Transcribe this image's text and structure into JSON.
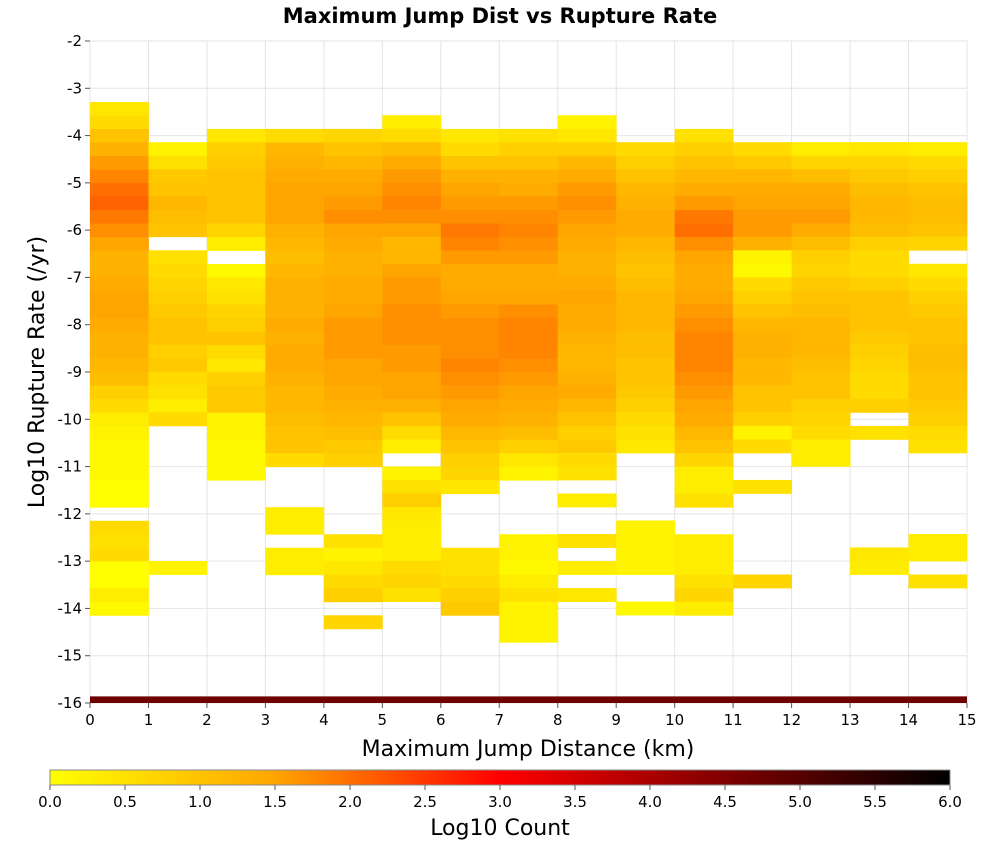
{
  "chart_data": {
    "type": "heatmap",
    "title": "Maximum Jump Dist vs Rupture Rate",
    "xlabel": "Maximum Jump Distance (km)",
    "ylabel": "Log10 Rupture Rate (/yr)",
    "xlim": [
      0,
      15
    ],
    "ylim": [
      -16,
      -2
    ],
    "x_ticks": [
      "0",
      "1",
      "2",
      "3",
      "4",
      "5",
      "6",
      "7",
      "8",
      "9",
      "10",
      "11",
      "12",
      "13",
      "14",
      "15"
    ],
    "y_ticks": [
      "-2",
      "-3",
      "-4",
      "-5",
      "-6",
      "-7",
      "-8",
      "-9",
      "-10",
      "-11",
      "-12",
      "-13",
      "-14",
      "-15",
      "-16"
    ],
    "grid": true,
    "x_bin_width": 1,
    "y_bin_height": 0.2857,
    "colorbar": {
      "label": "Log10 Count",
      "range": [
        0,
        6
      ],
      "ticks": [
        "0.0",
        "0.5",
        "1.0",
        "1.5",
        "2.0",
        "2.5",
        "3.0",
        "3.5",
        "4.0",
        "4.5",
        "5.0",
        "5.5",
        "6.0"
      ],
      "colors": [
        "#ffff00",
        "#ffa500",
        "#ff0000",
        "#000000"
      ]
    },
    "bottom_band": {
      "y_range": [
        -16,
        -15.86
      ],
      "value": 4.7
    },
    "columns": [
      {
        "x": 0.5,
        "y_top": -3.29,
        "values": [
          0.4,
          0.6,
          1.0,
          1.3,
          1.6,
          1.8,
          2.0,
          2.1,
          1.9,
          1.7,
          1.5,
          1.3,
          1.3,
          1.4,
          1.5,
          1.5,
          1.4,
          1.3,
          1.3,
          1.2,
          1.1,
          0.8,
          0.6,
          0.3,
          0.2,
          0.1,
          0.1,
          0.1,
          0,
          0,
          null,
          0.6,
          0.5,
          0.6,
          0,
          0,
          0.3,
          0.1
        ]
      },
      {
        "x": 1.5,
        "y_top": -4.14,
        "values": [
          0.2,
          0.5,
          0.9,
          1.0,
          1.2,
          1.1,
          1.0,
          null,
          0.5,
          0.6,
          0.7,
          0.8,
          0.9,
          1.0,
          1.0,
          0.8,
          0.9,
          0.6,
          0.5,
          0.3,
          0.6,
          null,
          null,
          null,
          null,
          null,
          null,
          null,
          null,
          null,
          null,
          0.2
        ]
      },
      {
        "x": 2.5,
        "y_top": -3.86,
        "values": [
          0.4,
          0.8,
          0.9,
          1.0,
          1.0,
          1.0,
          1.0,
          0.7,
          0.3,
          null,
          0.1,
          0.4,
          0.5,
          0.7,
          0.8,
          1.0,
          0.6,
          0.4,
          0.8,
          0.9,
          0.9,
          0.2,
          0.2,
          0.1,
          0.1,
          0.1
        ]
      },
      {
        "x": 3.5,
        "y_top": -3.86,
        "values": [
          0.6,
          1.2,
          1.3,
          1.4,
          1.5,
          1.5,
          1.5,
          1.3,
          1.2,
          1.1,
          1.2,
          1.3,
          1.3,
          1.3,
          1.4,
          1.3,
          1.4,
          1.4,
          1.3,
          1.2,
          1.2,
          1.1,
          1.0,
          1.0,
          0.6,
          null,
          null,
          null,
          0.3,
          0.3,
          null,
          0.3,
          0.3
        ]
      },
      {
        "x": 4.5,
        "y_top": -3.86,
        "values": [
          0.7,
          1.0,
          1.2,
          1.4,
          1.5,
          1.6,
          1.7,
          1.5,
          1.4,
          1.3,
          1.3,
          1.4,
          1.4,
          1.5,
          1.6,
          1.6,
          1.6,
          1.5,
          1.5,
          1.4,
          1.3,
          1.2,
          1.1,
          0.9,
          0.8,
          null,
          null,
          null,
          null,
          null,
          0.5,
          0.2,
          0.4,
          0.6,
          0.8,
          null,
          0.7
        ]
      },
      {
        "x": 5.5,
        "y_top": -3.57,
        "values": [
          0.3,
          0.6,
          1.1,
          1.4,
          1.6,
          1.7,
          1.8,
          1.7,
          1.5,
          1.2,
          1.2,
          1.5,
          1.6,
          1.6,
          1.7,
          1.7,
          1.7,
          1.6,
          1.6,
          1.5,
          1.5,
          1.3,
          1.0,
          0.6,
          0.3,
          null,
          0.2,
          0.5,
          0.8,
          0.4,
          0.3,
          0.3,
          0.3,
          0.6,
          0.7,
          0.5
        ]
      },
      {
        "x": 6.5,
        "y_top": -3.86,
        "values": [
          0.4,
          0.6,
          1.0,
          1.3,
          1.5,
          1.6,
          1.7,
          1.9,
          1.8,
          1.6,
          1.4,
          1.4,
          1.5,
          1.6,
          1.7,
          1.7,
          1.7,
          1.8,
          1.7,
          1.6,
          1.5,
          1.4,
          1.2,
          1.0,
          0.8,
          0.7,
          0.4,
          null,
          null,
          null,
          null,
          0.5,
          0.5,
          0.6,
          0.8,
          0.9
        ]
      },
      {
        "x": 7.5,
        "y_top": -3.86,
        "values": [
          0.5,
          0.8,
          1.0,
          1.3,
          1.4,
          1.6,
          1.7,
          1.8,
          1.7,
          1.6,
          1.4,
          1.4,
          1.5,
          1.7,
          1.8,
          1.8,
          1.8,
          1.7,
          1.6,
          1.5,
          1.4,
          1.3,
          1.1,
          0.8,
          0.4,
          0.2,
          null,
          null,
          null,
          null,
          0.2,
          0.2,
          0.1,
          0.3,
          0.5,
          0.2,
          0.2,
          0.2
        ]
      },
      {
        "x": 8.5,
        "y_top": -3.57,
        "values": [
          0.2,
          0.4,
          0.8,
          1.2,
          1.4,
          1.6,
          1.7,
          1.6,
          1.5,
          1.4,
          1.3,
          1.3,
          1.4,
          1.5,
          1.4,
          1.4,
          1.3,
          1.2,
          1.2,
          1.3,
          1.4,
          1.2,
          1.0,
          0.8,
          0.9,
          0.6,
          0.5,
          null,
          0.3,
          null,
          null,
          0.5,
          null,
          0.3,
          null,
          0.4
        ]
      },
      {
        "x": 9.5,
        "y_top": -4.14,
        "values": [
          0.6,
          0.8,
          1.0,
          1.2,
          1.3,
          1.4,
          1.4,
          1.2,
          1.1,
          1.0,
          1.1,
          1.2,
          1.2,
          1.2,
          1.1,
          1.1,
          1.0,
          1.0,
          0.9,
          0.8,
          0.6,
          0.5,
          0.4,
          null,
          null,
          null,
          null,
          null,
          0.2,
          0.2,
          0.2,
          0.2,
          null,
          null,
          0.1
        ]
      },
      {
        "x": 10.5,
        "y_top": -3.86,
        "values": [
          0.5,
          0.8,
          1.0,
          1.2,
          1.4,
          1.6,
          1.9,
          2.0,
          1.7,
          1.5,
          1.4,
          1.4,
          1.5,
          1.6,
          1.7,
          1.8,
          1.8,
          1.8,
          1.7,
          1.6,
          1.5,
          1.4,
          1.2,
          1.0,
          0.7,
          0.3,
          0.3,
          0.5,
          null,
          null,
          0.3,
          0.3,
          0.3,
          0.5,
          0.7,
          0.3
        ]
      },
      {
        "x": 11.5,
        "y_top": -4.14,
        "values": [
          0.6,
          0.9,
          1.2,
          1.4,
          1.5,
          1.6,
          1.6,
          1.3,
          0.2,
          0.1,
          0.6,
          0.8,
          1.0,
          1.2,
          1.3,
          1.3,
          1.2,
          1.2,
          1.0,
          1.0,
          0.8,
          0.2,
          0.6,
          null,
          null,
          0.5,
          null,
          null,
          null,
          null,
          null,
          null,
          0.7
        ]
      },
      {
        "x": 12.5,
        "y_top": -4.14,
        "values": [
          0.3,
          0.7,
          1.1,
          1.4,
          1.5,
          1.6,
          1.4,
          1.1,
          0.8,
          0.7,
          0.9,
          1.0,
          1.1,
          1.2,
          1.2,
          1.2,
          1.1,
          1.0,
          1.0,
          0.8,
          0.7,
          0.6,
          0.3,
          0.3
        ]
      },
      {
        "x": 13.5,
        "y_top": -4.14,
        "values": [
          0.4,
          0.7,
          0.9,
          1.1,
          1.2,
          1.2,
          1.1,
          0.8,
          0.6,
          0.6,
          0.8,
          1.0,
          1.0,
          1.0,
          0.9,
          0.8,
          0.7,
          0.6,
          0.6,
          0.8,
          null,
          0.5,
          null,
          null,
          null,
          null,
          null,
          null,
          null,
          null,
          0.4,
          0.3
        ]
      },
      {
        "x": 14.5,
        "y_top": -4.14,
        "values": [
          0.3,
          0.6,
          0.8,
          1.0,
          1.1,
          1.1,
          1.0,
          0.7,
          null,
          0.4,
          0.6,
          0.8,
          0.9,
          1.0,
          1.0,
          1.1,
          1.1,
          1.0,
          1.0,
          0.9,
          0.8,
          0.6,
          0.5,
          null,
          null,
          null,
          null,
          null,
          null,
          0.3,
          0.3,
          null,
          0.5
        ]
      }
    ]
  }
}
